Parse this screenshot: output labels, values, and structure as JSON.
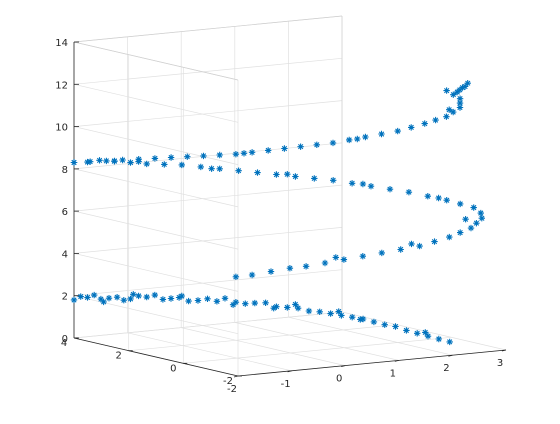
{
  "chart_data": {
    "type": "scatter3d",
    "title": "",
    "xlabel": "",
    "ylabel": "",
    "zlabel": "",
    "marker": "*",
    "marker_color": "#0072BD",
    "grid": true,
    "xlim": [
      -2,
      3
    ],
    "ylim": [
      -2,
      4
    ],
    "zlim": [
      0,
      14
    ],
    "x_ticks": [
      "-2",
      "-1",
      "0",
      "1",
      "2",
      "3"
    ],
    "y_ticks": [
      "-2",
      "0",
      "2",
      "4"
    ],
    "z_ticks": [
      "0",
      "2",
      "4",
      "6",
      "8",
      "10",
      "12",
      "14"
    ],
    "series": [
      {
        "points": [
          [
            -2.0,
            4.0,
            1.8
          ],
          [
            -1.8,
            3.9,
            1.9
          ],
          [
            -1.6,
            3.8,
            1.8
          ],
          [
            -1.4,
            3.6,
            1.9
          ],
          [
            -1.2,
            3.5,
            1.8
          ],
          [
            -1.0,
            3.3,
            1.9
          ],
          [
            -0.8,
            3.1,
            1.8
          ],
          [
            -0.6,
            2.9,
            1.9
          ],
          [
            -0.4,
            2.6,
            1.8
          ],
          [
            -0.2,
            2.3,
            1.8
          ],
          [
            0.0,
            2.0,
            1.8
          ],
          [
            0.2,
            1.7,
            1.8
          ],
          [
            0.4,
            1.3,
            1.7
          ],
          [
            0.6,
            0.9,
            1.7
          ],
          [
            0.8,
            0.5,
            1.6
          ],
          [
            1.0,
            0.1,
            1.5
          ],
          [
            1.2,
            -0.3,
            1.4
          ],
          [
            1.4,
            -0.7,
            1.2
          ],
          [
            1.6,
            -1.1,
            1.0
          ],
          [
            1.8,
            -1.5,
            0.8
          ],
          [
            -1.9,
            3.95,
            1.95
          ],
          [
            -1.5,
            3.7,
            1.85
          ],
          [
            -1.1,
            3.4,
            1.95
          ],
          [
            -0.7,
            3.0,
            1.85
          ],
          [
            -0.3,
            2.45,
            1.9
          ],
          [
            0.1,
            1.85,
            1.75
          ],
          [
            0.5,
            1.1,
            1.7
          ],
          [
            0.9,
            0.3,
            1.55
          ],
          [
            1.3,
            -0.5,
            1.3
          ],
          [
            1.7,
            -1.3,
            0.9
          ],
          [
            -1.7,
            3.85,
            2.0
          ],
          [
            -1.3,
            3.55,
            1.75
          ],
          [
            -0.9,
            3.2,
            2.0
          ],
          [
            -0.5,
            2.75,
            1.75
          ],
          [
            0.3,
            1.5,
            1.85
          ],
          [
            0.7,
            0.7,
            1.6
          ],
          [
            1.1,
            -0.1,
            1.45
          ],
          [
            1.5,
            -0.9,
            1.15
          ],
          [
            1.9,
            -1.7,
            0.7
          ],
          [
            2.0,
            -1.9,
            0.6
          ],
          [
            -1.6,
            3.7,
            1.7
          ],
          [
            -1.2,
            3.4,
            2.05
          ],
          [
            -0.6,
            2.8,
            2.0
          ],
          [
            0.0,
            2.1,
            1.65
          ],
          [
            0.6,
            1.0,
            1.85
          ],
          [
            1.2,
            -0.2,
            1.35
          ],
          [
            1.8,
            -1.4,
            0.95
          ],
          [
            -0.1,
            2.2,
            1.95
          ],
          [
            0.4,
            1.4,
            1.6
          ],
          [
            1.0,
            0.2,
            1.65
          ]
        ]
      },
      {
        "points": [
          [
            0.0,
            2.0,
            3.0
          ],
          [
            0.4,
            1.5,
            3.3
          ],
          [
            0.8,
            1.0,
            3.6
          ],
          [
            1.2,
            0.4,
            4.0
          ],
          [
            1.6,
            -0.2,
            4.4
          ],
          [
            2.0,
            -0.8,
            4.8
          ],
          [
            2.3,
            -1.3,
            5.3
          ],
          [
            2.5,
            -1.7,
            5.8
          ],
          [
            2.6,
            -1.9,
            6.3
          ],
          [
            2.5,
            -1.8,
            6.8
          ],
          [
            2.2,
            -1.4,
            7.1
          ],
          [
            1.8,
            -0.8,
            7.4
          ],
          [
            1.4,
            -0.2,
            7.6
          ],
          [
            1.0,
            0.4,
            7.8
          ],
          [
            0.6,
            1.0,
            7.9
          ],
          [
            0.2,
            1.6,
            8.0
          ],
          [
            -0.2,
            2.2,
            8.1
          ],
          [
            -0.6,
            2.8,
            8.2
          ],
          [
            -1.0,
            3.3,
            8.2
          ],
          [
            -1.4,
            3.7,
            8.3
          ],
          [
            0.2,
            1.8,
            3.1
          ],
          [
            0.6,
            1.2,
            3.5
          ],
          [
            1.0,
            0.7,
            3.8
          ],
          [
            1.4,
            0.1,
            4.2
          ],
          [
            1.8,
            -0.5,
            4.6
          ],
          [
            2.15,
            -1.05,
            5.05
          ],
          [
            2.4,
            -1.5,
            5.55
          ],
          [
            2.55,
            -1.8,
            6.05
          ],
          [
            2.58,
            -1.9,
            6.55
          ],
          [
            2.35,
            -1.6,
            6.95
          ],
          [
            2.0,
            -1.1,
            7.25
          ],
          [
            1.6,
            -0.5,
            7.5
          ],
          [
            1.2,
            0.1,
            7.7
          ],
          [
            0.8,
            0.7,
            7.85
          ],
          [
            0.4,
            1.3,
            7.95
          ],
          [
            0.0,
            1.9,
            8.05
          ],
          [
            -0.4,
            2.5,
            8.15
          ],
          [
            -0.8,
            3.05,
            8.2
          ],
          [
            -1.2,
            3.5,
            8.25
          ],
          [
            -1.6,
            3.85,
            8.35
          ],
          [
            1.1,
            0.5,
            4.1
          ],
          [
            1.9,
            -0.7,
            4.9
          ],
          [
            2.45,
            -1.6,
            6.2
          ],
          [
            2.1,
            -1.3,
            7.2
          ],
          [
            1.3,
            -0.1,
            7.7
          ],
          [
            0.5,
            1.1,
            8.0
          ],
          [
            -0.3,
            2.3,
            8.1
          ],
          [
            -1.1,
            3.4,
            8.3
          ],
          [
            -1.8,
            3.9,
            8.3
          ],
          [
            -2.0,
            4.0,
            8.3
          ]
        ]
      },
      {
        "points": [
          [
            -2.0,
            4.0,
            8.3
          ],
          [
            -1.6,
            3.6,
            8.4
          ],
          [
            -1.2,
            3.2,
            8.5
          ],
          [
            -0.8,
            2.8,
            8.6
          ],
          [
            -0.4,
            2.4,
            8.7
          ],
          [
            0.0,
            2.0,
            8.8
          ],
          [
            0.4,
            1.6,
            9.0
          ],
          [
            0.8,
            1.2,
            9.2
          ],
          [
            1.2,
            0.8,
            9.4
          ],
          [
            1.6,
            0.4,
            9.7
          ],
          [
            2.0,
            0.0,
            10.0
          ],
          [
            2.3,
            -0.4,
            10.4
          ],
          [
            2.5,
            -0.8,
            10.8
          ],
          [
            2.6,
            -1.1,
            11.3
          ],
          [
            2.5,
            -1.3,
            11.8
          ],
          [
            2.3,
            -1.2,
            12.2
          ],
          [
            2.6,
            -1.0,
            12.0
          ],
          [
            2.8,
            -0.8,
            12.1
          ],
          [
            3.0,
            -0.6,
            12.2
          ],
          [
            2.9,
            -0.7,
            12.1
          ],
          [
            -1.8,
            3.8,
            8.35
          ],
          [
            -1.4,
            3.4,
            8.45
          ],
          [
            -1.0,
            3.0,
            8.55
          ],
          [
            -0.6,
            2.6,
            8.65
          ],
          [
            -0.2,
            2.2,
            8.75
          ],
          [
            0.2,
            1.8,
            8.9
          ],
          [
            0.6,
            1.4,
            9.1
          ],
          [
            1.0,
            1.0,
            9.3
          ],
          [
            1.4,
            0.6,
            9.55
          ],
          [
            1.8,
            0.2,
            9.85
          ],
          [
            2.15,
            -0.2,
            10.2
          ],
          [
            2.4,
            -0.6,
            10.6
          ],
          [
            2.55,
            -0.95,
            11.05
          ],
          [
            2.55,
            -1.2,
            11.55
          ],
          [
            2.4,
            -1.25,
            12.0
          ],
          [
            2.7,
            -0.9,
            12.05
          ],
          [
            -1.5,
            3.5,
            8.4
          ],
          [
            0.1,
            1.9,
            8.85
          ],
          [
            1.5,
            0.5,
            9.6
          ],
          [
            2.45,
            -1.0,
            11.2
          ]
        ]
      }
    ]
  }
}
